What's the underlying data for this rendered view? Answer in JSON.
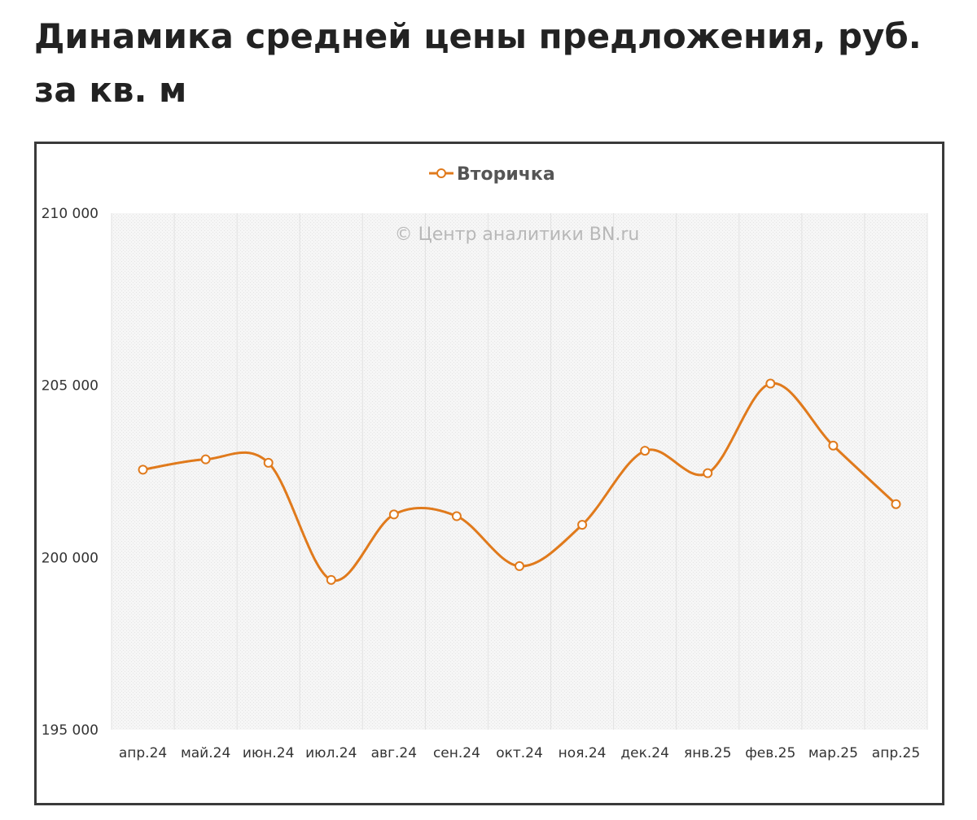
{
  "page": {
    "title": "Динамика средней цены предложения, руб. за кв. м"
  },
  "chart_data": {
    "type": "line",
    "title": "",
    "xlabel": "",
    "ylabel": "",
    "watermark": "© Центр аналитики BN.ru",
    "legend_position": "top-center",
    "smooth": true,
    "grid": true,
    "ylim": [
      195000,
      210000
    ],
    "yticks": [
      195000,
      200000,
      205000,
      210000
    ],
    "ytick_labels": [
      "195 000",
      "200 000",
      "205 000",
      "210 000"
    ],
    "categories": [
      "апр.24",
      "май.24",
      "июн.24",
      "июл.24",
      "авг.24",
      "сен.24",
      "окт.24",
      "ноя.24",
      "дек.24",
      "янв.25",
      "фев.25",
      "мар.25",
      "апр.25"
    ],
    "series": [
      {
        "name": "Вторичка",
        "color": "#e07a1c",
        "values": [
          202550,
          202850,
          202750,
          199350,
          201250,
          201200,
          199750,
          200950,
          203100,
          202450,
          205050,
          203250,
          201550
        ]
      }
    ]
  }
}
